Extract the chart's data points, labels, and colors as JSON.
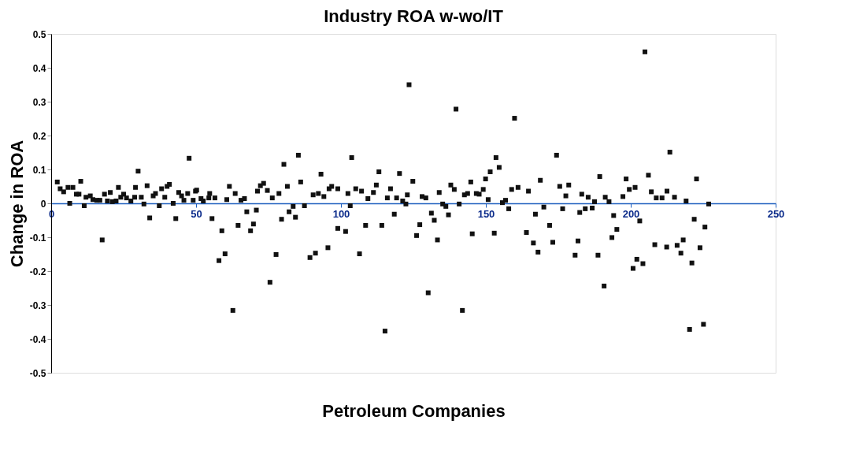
{
  "chart_data": {
    "type": "scatter",
    "title": "Industry ROA w-wo/IT",
    "xlabel": "Petroleum Companies",
    "ylabel": "Change in ROA",
    "xlim": [
      0,
      250
    ],
    "xticks": [
      0,
      50,
      100,
      150,
      200,
      250
    ],
    "ylim": [
      -0.5,
      0.5
    ],
    "yticks": [
      -0.5,
      -0.4,
      -0.3,
      -0.2,
      -0.1,
      0,
      0.1,
      0.2,
      0.3,
      0.4,
      0.5
    ],
    "grid": false,
    "marker": "square",
    "series": [
      {
        "color": "#111111",
        "x": [
          2.1,
          3.1,
          4.3,
          5.8,
          7.5,
          6.4,
          8.7,
          10.2,
          9.6,
          11.4,
          12,
          13.5,
          14.4,
          15.7,
          16.8,
          17.6,
          18.4,
          19.4,
          20.4,
          21.1,
          22.4,
          23.2,
          24,
          25,
          26,
          27.5,
          28.8,
          29.1,
          30,
          31.1,
          32,
          33.1,
          34,
          35.2,
          36,
          37.3,
          38.1,
          39.2,
          40,
          40.8,
          42.1,
          43,
          44,
          45,
          45.8,
          47.1,
          47.6,
          49,
          49.8,
          50.2,
          51.7,
          52.5,
          54.7,
          54.4,
          55.5,
          56.5,
          57.9,
          58.9,
          60,
          60.6,
          61.5,
          62.7,
          63.5,
          64.5,
          65.5,
          66.7,
          67.5,
          68.8,
          69.8,
          70.8,
          71.2,
          72.2,
          73.3,
          74.6,
          75.5,
          76.3,
          77.6,
          78.6,
          79.5,
          80.3,
          81.5,
          82.1,
          83.5,
          84.3,
          85.3,
          86.1,
          87.4,
          89.3,
          90.4,
          91.2,
          92.2,
          93.1,
          94.1,
          95.5,
          95.9,
          96.8,
          98.9,
          98.9,
          101.6,
          103.2,
          102.4,
          103.7,
          105.1,
          106.4,
          107.1,
          108.5,
          109.3,
          111.2,
          112.2,
          113.1,
          114.1,
          115.2,
          116,
          117.1,
          118.4,
          119.2,
          120.2,
          121.3,
          122.4,
          122.9,
          123.5,
          124.8,
          126.1,
          127.2,
          128,
          129.3,
          130.1,
          131.2,
          132.2,
          133.3,
          133.9,
          135.1,
          136.2,
          137.1,
          137.9,
          139.1,
          139.7,
          140.8,
          141.9,
          142.6,
          143.7,
          144.8,
          145.3,
          146.7,
          147.7,
          149.1,
          149.9,
          150.8,
          151.5,
          152.9,
          153.5,
          154.6,
          155.7,
          156.8,
          157.9,
          158.9,
          159.9,
          161.1,
          164,
          164.7,
          166.4,
          167.1,
          168,
          168.8,
          170,
          172,
          173.1,
          174.4,
          175.5,
          176.5,
          177.6,
          178.6,
          180.8,
          181.8,
          182.4,
          183.1,
          184.3,
          185.3,
          186.7,
          187.5,
          188.7,
          189.3,
          190.8,
          191.2,
          192.5,
          193.5,
          194.1,
          195.2,
          197.3,
          198.4,
          199.5,
          200.8,
          201.5,
          202.1,
          203.1,
          204.2,
          204.9,
          206.1,
          207.1,
          208.3,
          208.8,
          210.8,
          212.4,
          212.5,
          213.5,
          215.1,
          216,
          217.3,
          218.1,
          219.1,
          220.3,
          221.1,
          221.9,
          222.7,
          223.9,
          225.1,
          225.6,
          226.9
        ],
        "values": [
          0.063,
          0.043,
          0.034,
          0.047,
          0.047,
          0.0,
          0.027,
          0.065,
          0.027,
          -0.007,
          0.018,
          0.022,
          0.011,
          0.009,
          0.009,
          -0.108,
          0.027,
          0.007,
          0.032,
          0.005,
          0.007,
          0.047,
          0.018,
          0.027,
          0.016,
          0.007,
          0.018,
          0.047,
          0.095,
          0.018,
          -0.002,
          0.052,
          -0.043,
          0.022,
          0.029,
          -0.007,
          0.043,
          0.018,
          0.05,
          0.056,
          0.0,
          -0.045,
          0.032,
          0.022,
          0.009,
          0.029,
          0.133,
          0.009,
          0.036,
          0.039,
          0.014,
          0.007,
          0.029,
          0.016,
          -0.045,
          0.016,
          -0.169,
          -0.081,
          -0.149,
          0.011,
          0.05,
          -0.316,
          0.029,
          -0.065,
          0.009,
          0.014,
          -0.025,
          -0.081,
          -0.061,
          -0.02,
          0.036,
          0.052,
          0.059,
          0.038,
          -0.233,
          0.016,
          -0.151,
          0.029,
          -0.047,
          0.115,
          0.05,
          -0.025,
          -0.009,
          -0.041,
          0.142,
          0.063,
          -0.007,
          -0.16,
          0.025,
          -0.147,
          0.029,
          0.086,
          0.02,
          -0.131,
          0.043,
          0.05,
          0.043,
          -0.074,
          -0.083,
          -0.007,
          0.029,
          0.135,
          0.043,
          -0.149,
          0.036,
          -0.065,
          0.014,
          0.032,
          0.054,
          0.093,
          -0.065,
          -0.377,
          0.016,
          0.043,
          -0.032,
          0.016,
          0.088,
          0.007,
          -0.002,
          0.025,
          0.35,
          0.065,
          -0.095,
          -0.063,
          0.02,
          0.016,
          -0.264,
          -0.029,
          -0.05,
          -0.108,
          0.032,
          -0.002,
          -0.009,
          -0.034,
          0.054,
          0.041,
          0.278,
          -0.002,
          -0.316,
          0.025,
          0.029,
          0.063,
          -0.09,
          0.029,
          0.027,
          0.041,
          0.072,
          0.011,
          0.093,
          -0.088,
          0.135,
          0.106,
          0.002,
          0.009,
          -0.016,
          0.041,
          0.251,
          0.047,
          -0.086,
          0.036,
          -0.117,
          -0.032,
          -0.144,
          0.068,
          -0.011,
          -0.065,
          -0.115,
          0.142,
          0.05,
          -0.016,
          0.022,
          0.054,
          -0.153,
          -0.111,
          -0.027,
          0.027,
          -0.016,
          0.018,
          -0.014,
          0.005,
          -0.153,
          0.079,
          -0.244,
          0.018,
          0.005,
          -0.101,
          -0.036,
          -0.077,
          0.02,
          0.072,
          0.041,
          -0.192,
          0.047,
          -0.165,
          -0.052,
          -0.178,
          0.447,
          0.083,
          0.034,
          -0.122,
          0.016,
          0.016,
          -0.129,
          0.036,
          0.151,
          0.018,
          -0.124,
          -0.147,
          -0.108,
          0.007,
          -0.372,
          -0.176,
          -0.047,
          0.072,
          -0.131,
          -0.357,
          -0.07,
          -0.002
        ]
      }
    ]
  }
}
